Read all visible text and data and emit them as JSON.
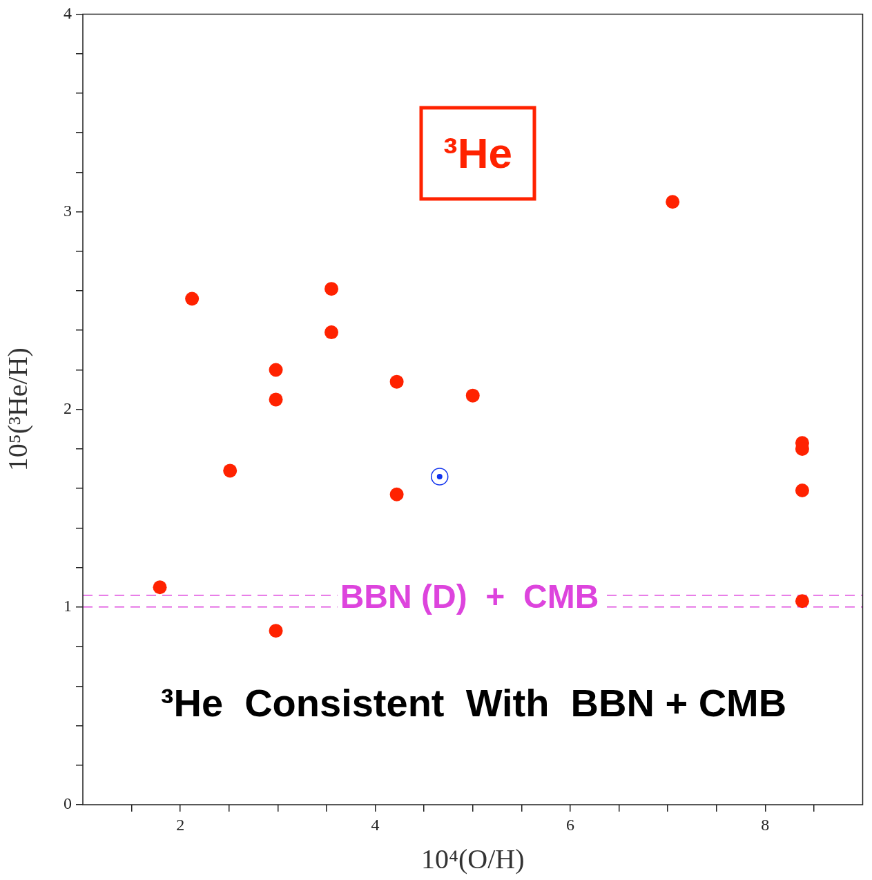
{
  "chart_data": {
    "type": "scatter",
    "xlabel": "10⁴(O/H)",
    "ylabel": "10⁵(³He/H)",
    "xlim": [
      1,
      9
    ],
    "ylim": [
      0,
      4
    ],
    "xticks": [
      {
        "value": 1.5,
        "label": null
      },
      2,
      {
        "value": 2.5,
        "label": null
      },
      {
        "value": 3,
        "label": null
      },
      {
        "value": 3.5,
        "label": null
      },
      4,
      {
        "value": 4.5,
        "label": null
      },
      {
        "value": 5,
        "label": null
      },
      {
        "value": 5.5,
        "label": null
      },
      6,
      {
        "value": 6.5,
        "label": null
      },
      {
        "value": 7,
        "label": null
      },
      {
        "value": 7.5,
        "label": null
      },
      8,
      {
        "value": 8.5,
        "label": null
      }
    ],
    "yticks": [
      0,
      {
        "value": 0.2,
        "label": null
      },
      {
        "value": 0.4,
        "label": null
      },
      {
        "value": 0.6,
        "label": null
      },
      {
        "value": 0.8,
        "label": null
      },
      1,
      {
        "value": 1.2,
        "label": null
      },
      {
        "value": 1.4,
        "label": null
      },
      {
        "value": 1.6,
        "label": null
      },
      {
        "value": 1.8,
        "label": null
      },
      2,
      {
        "value": 2.2,
        "label": null
      },
      {
        "value": 2.4,
        "label": null
      },
      {
        "value": 2.6,
        "label": null
      },
      {
        "value": 2.8,
        "label": null
      },
      3,
      {
        "value": 3.2,
        "label": null
      },
      {
        "value": 3.4,
        "label": null
      },
      {
        "value": 3.6,
        "label": null
      },
      {
        "value": 3.8,
        "label": null
      },
      4
    ],
    "grid": false,
    "legend": false,
    "marker": "circle",
    "series": [
      {
        "color": "#ff2200",
        "x": [
          1.79,
          2.12,
          2.51,
          2.98,
          2.98,
          2.98,
          3.55,
          3.55,
          4.22,
          4.22,
          5.0,
          7.05,
          8.38,
          8.38,
          8.38,
          8.38
        ],
        "values": [
          1.1,
          2.56,
          1.69,
          2.2,
          2.05,
          0.88,
          2.61,
          2.39,
          2.14,
          1.57,
          2.07,
          3.05,
          1.83,
          1.8,
          1.59,
          1.03
        ]
      },
      {
        "color": "#1133ee",
        "x": [
          4.66
        ],
        "values": [
          1.66
        ]
      }
    ],
    "ref_lines": [
      {
        "axis": "y",
        "value": 1.0,
        "color": "#dd44dd",
        "line_style": "dashed",
        "label": "BBN (D)  +  CMB"
      },
      {
        "axis": "y",
        "value": 1.06,
        "color": "#dd44dd",
        "line_style": "dashed"
      }
    ],
    "annotations": [
      "³He",
      "³He  Consistent  With  BBN + CMB"
    ]
  }
}
